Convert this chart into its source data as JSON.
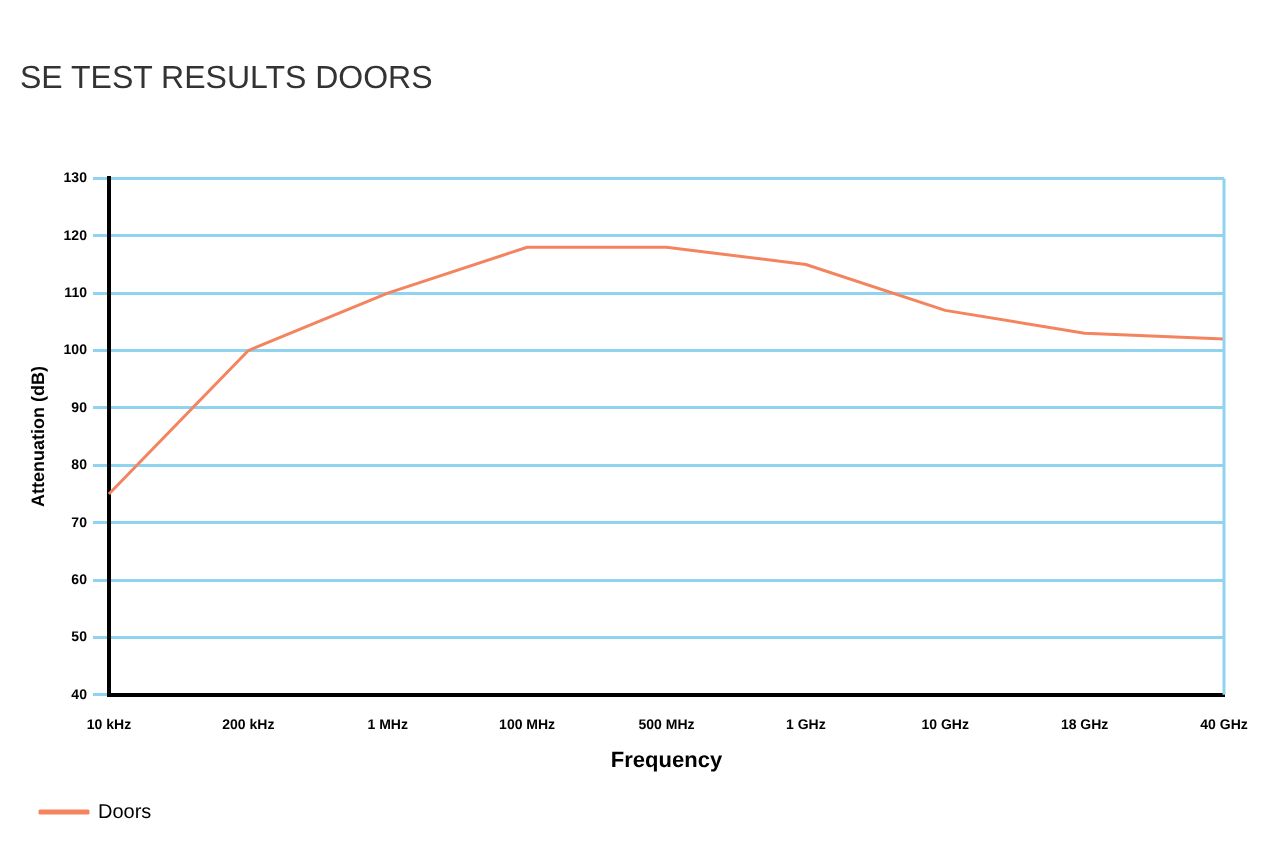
{
  "chart_data": {
    "type": "line",
    "title": "SE TEST RESULTS DOORS",
    "xlabel": "Frequency",
    "ylabel": "Attenuation (dB)",
    "categories": [
      "10 kHz",
      "200 kHz",
      "1 MHz",
      "100 MHz",
      "500 MHz",
      "1 GHz",
      "10 GHz",
      "18 GHz",
      "40 GHz"
    ],
    "series": [
      {
        "name": "Doors",
        "color": "#f4845f",
        "values": [
          75,
          100,
          110,
          118,
          118,
          115,
          107,
          103,
          102
        ]
      }
    ],
    "ylim": [
      40,
      130
    ],
    "yticks": [
      40,
      50,
      60,
      70,
      80,
      90,
      100,
      110,
      120,
      130
    ],
    "grid": "y",
    "legend": "bottom left",
    "marker": "none",
    "line_style": "solid"
  }
}
